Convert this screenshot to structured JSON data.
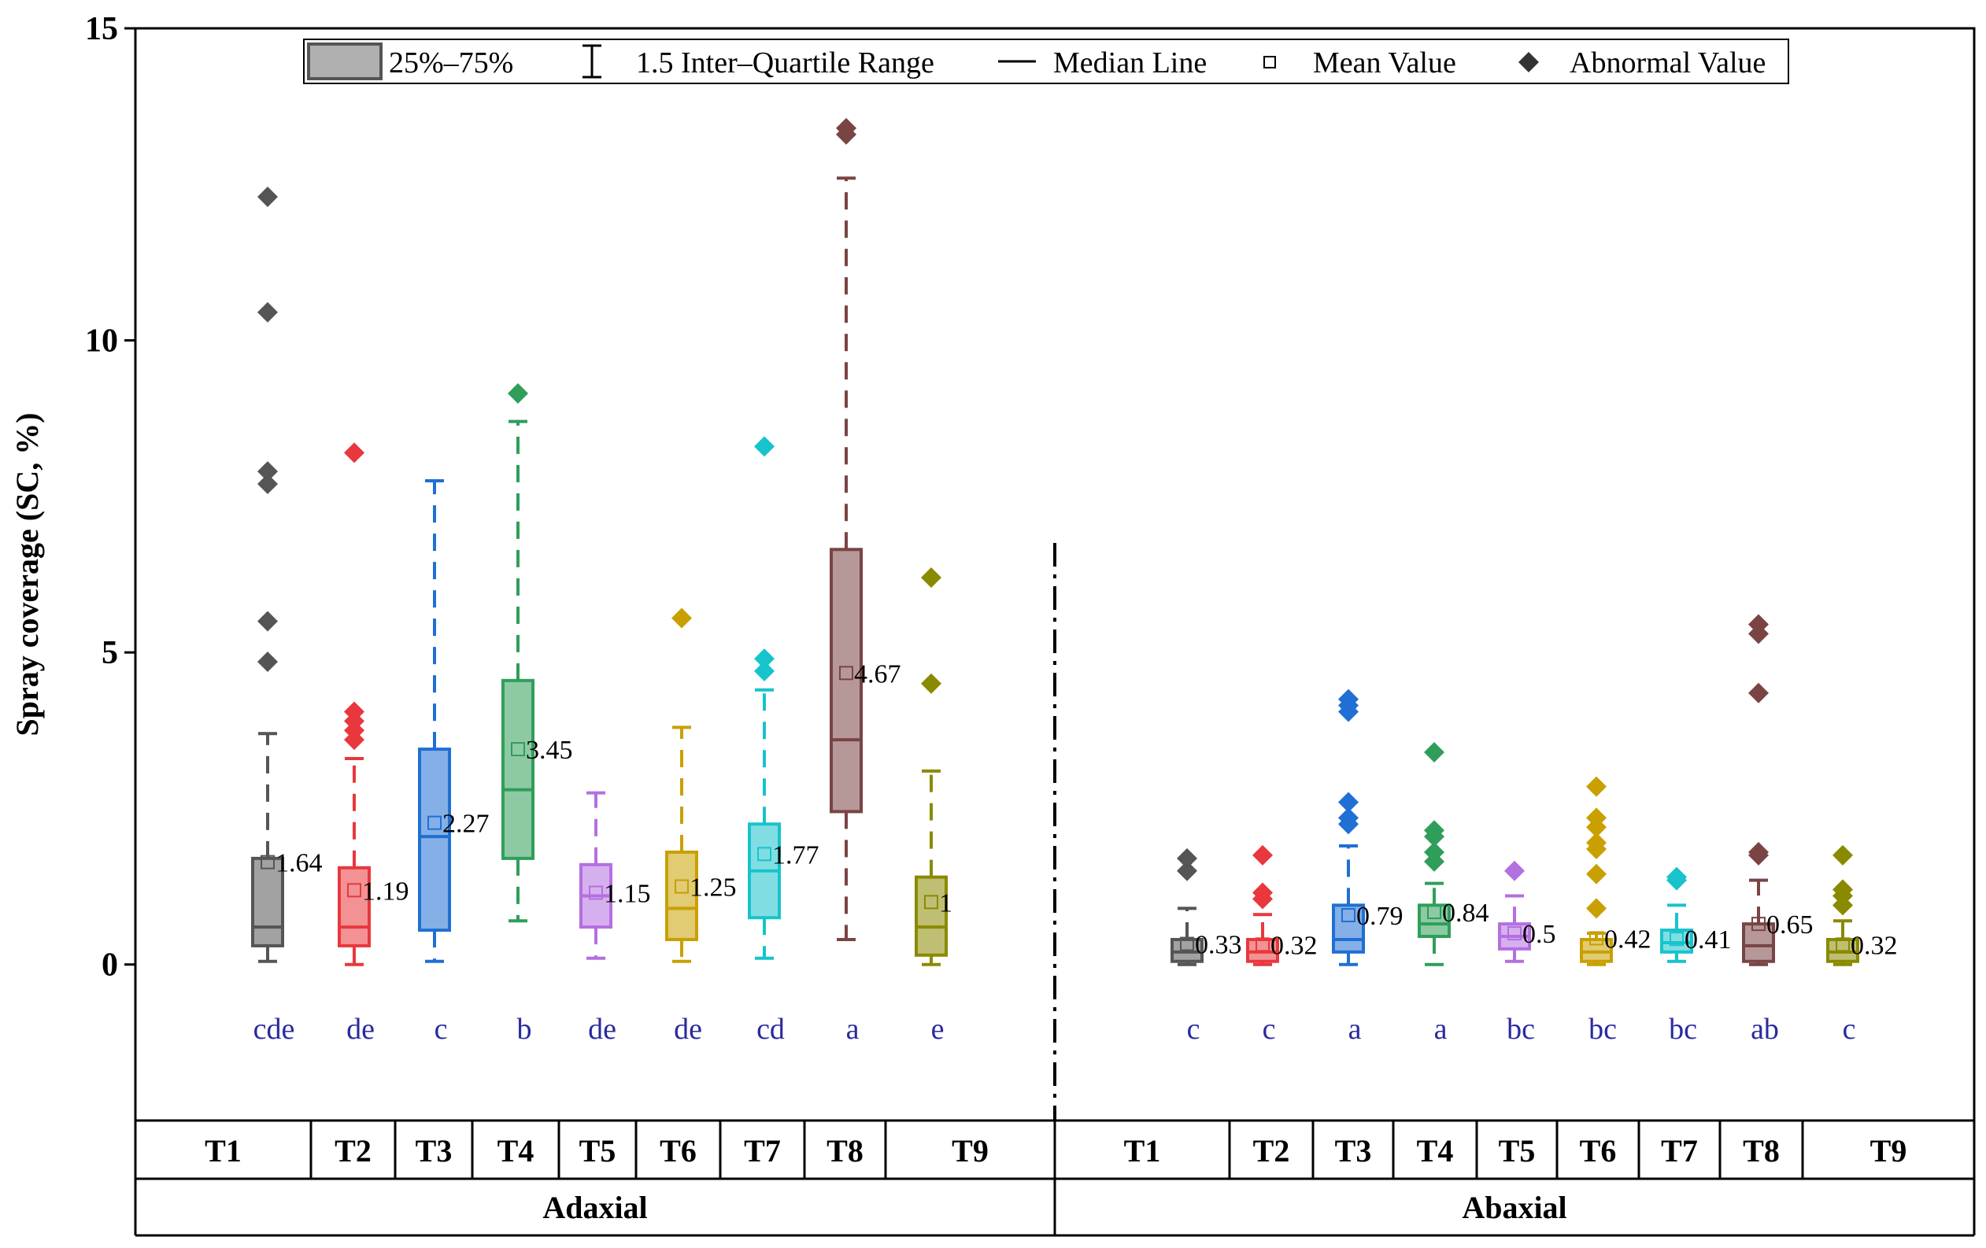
{
  "chart_data": {
    "type": "box",
    "ylabel": "Spray coverage (SC, %)",
    "ylim": [
      -2.5,
      15
    ],
    "yticks": [
      0,
      5,
      10,
      15
    ],
    "legend": {
      "items": [
        {
          "key": "box",
          "label": "25%–75%"
        },
        {
          "key": "iqr",
          "label": "1.5 Inter–Quartile Range"
        },
        {
          "key": "median",
          "label": "Median Line"
        },
        {
          "key": "mean",
          "label": "Mean Value"
        },
        {
          "key": "outlier",
          "label": "Abnormal Value"
        }
      ]
    },
    "colors": {
      "T1": "#555555",
      "T2": "#e8383d",
      "T3": "#1f6fd4",
      "T4": "#2f9e5a",
      "T5": "#b46fe0",
      "T6": "#c9a000",
      "T7": "#17c3cc",
      "T8": "#7a4444",
      "T9": "#8a8a00"
    },
    "groups": [
      {
        "name": "Adaxial",
        "series": [
          {
            "name": "T1",
            "q1": 0.3,
            "median": 0.6,
            "q3": 1.7,
            "whisker_low": 0.05,
            "whisker_high": 3.7,
            "mean": 1.64,
            "mean_label": "1.64",
            "outliers": [
              4.85,
              5.5,
              7.7,
              7.9,
              10.45,
              12.3
            ],
            "sig": "cde"
          },
          {
            "name": "T2",
            "q1": 0.3,
            "median": 0.6,
            "q3": 1.55,
            "whisker_low": 0.0,
            "whisker_high": 3.3,
            "mean": 1.19,
            "mean_label": "1.19",
            "outliers": [
              3.6,
              3.75,
              3.9,
              4.05,
              8.2
            ],
            "sig": "de"
          },
          {
            "name": "T3",
            "q1": 0.55,
            "median": 2.05,
            "q3": 3.45,
            "whisker_low": 0.05,
            "whisker_high": 7.75,
            "mean": 2.27,
            "mean_label": "2.27",
            "outliers": [],
            "sig": "c"
          },
          {
            "name": "T4",
            "q1": 1.7,
            "median": 2.8,
            "q3": 4.55,
            "whisker_low": 0.7,
            "whisker_high": 8.7,
            "mean": 3.45,
            "mean_label": "3.45",
            "outliers": [
              9.15
            ],
            "sig": "b"
          },
          {
            "name": "T5",
            "q1": 0.6,
            "median": 1.1,
            "q3": 1.6,
            "whisker_low": 0.1,
            "whisker_high": 2.75,
            "mean": 1.15,
            "mean_label": "1.15",
            "outliers": [],
            "sig": "de"
          },
          {
            "name": "T6",
            "q1": 0.4,
            "median": 0.9,
            "q3": 1.8,
            "whisker_low": 0.05,
            "whisker_high": 3.8,
            "mean": 1.25,
            "mean_label": "1.25",
            "outliers": [
              5.55
            ],
            "sig": "de"
          },
          {
            "name": "T7",
            "q1": 0.75,
            "median": 1.5,
            "q3": 2.25,
            "whisker_low": 0.1,
            "whisker_high": 4.4,
            "mean": 1.77,
            "mean_label": "1.77",
            "outliers": [
              4.7,
              4.9,
              8.3
            ],
            "sig": "cd"
          },
          {
            "name": "T8",
            "q1": 2.45,
            "median": 3.6,
            "q3": 6.65,
            "whisker_low": 0.4,
            "whisker_high": 12.6,
            "mean": 4.67,
            "mean_label": "4.67",
            "outliers": [
              13.3,
              13.4
            ],
            "sig": "a"
          },
          {
            "name": "T9",
            "q1": 0.15,
            "median": 0.6,
            "q3": 1.4,
            "whisker_low": 0.0,
            "whisker_high": 3.1,
            "mean": 1.0,
            "mean_label": "1",
            "outliers": [
              4.5,
              6.2
            ],
            "sig": "e"
          }
        ]
      },
      {
        "name": "Abaxial",
        "series": [
          {
            "name": "T1",
            "q1": 0.05,
            "median": 0.2,
            "q3": 0.4,
            "whisker_low": 0.0,
            "whisker_high": 0.9,
            "mean": 0.33,
            "mean_label": "0.33",
            "outliers": [
              1.5,
              1.7
            ],
            "sig": "c"
          },
          {
            "name": "T2",
            "q1": 0.05,
            "median": 0.2,
            "q3": 0.4,
            "whisker_low": 0.0,
            "whisker_high": 0.8,
            "mean": 0.32,
            "mean_label": "0.32",
            "outliers": [
              1.05,
              1.15,
              1.75
            ],
            "sig": "c"
          },
          {
            "name": "T3",
            "q1": 0.2,
            "median": 0.4,
            "q3": 0.95,
            "whisker_low": 0.0,
            "whisker_high": 1.9,
            "mean": 0.79,
            "mean_label": "0.79",
            "outliers": [
              2.25,
              2.35,
              2.6,
              4.05,
              4.15,
              4.25
            ],
            "sig": "a"
          },
          {
            "name": "T4",
            "q1": 0.45,
            "median": 0.65,
            "q3": 0.95,
            "whisker_low": 0.0,
            "whisker_high": 1.3,
            "mean": 0.84,
            "mean_label": "0.84",
            "outliers": [
              1.65,
              1.8,
              2.05,
              2.15,
              3.4
            ],
            "sig": "a"
          },
          {
            "name": "T5",
            "q1": 0.25,
            "median": 0.45,
            "q3": 0.65,
            "whisker_low": 0.05,
            "whisker_high": 1.1,
            "mean": 0.5,
            "mean_label": "0.5",
            "outliers": [
              1.5
            ],
            "sig": "bc"
          },
          {
            "name": "T6",
            "q1": 0.05,
            "median": 0.2,
            "q3": 0.4,
            "whisker_low": 0.0,
            "whisker_high": 0.5,
            "mean": 0.42,
            "mean_label": "0.42",
            "outliers": [
              0.9,
              1.45,
              1.85,
              1.95,
              2.2,
              2.35,
              2.85
            ],
            "sig": "bc"
          },
          {
            "name": "T7",
            "q1": 0.2,
            "median": 0.35,
            "q3": 0.55,
            "whisker_low": 0.05,
            "whisker_high": 0.95,
            "mean": 0.41,
            "mean_label": "0.41",
            "outliers": [
              1.35,
              1.4
            ],
            "sig": "bc"
          },
          {
            "name": "T8",
            "q1": 0.05,
            "median": 0.3,
            "q3": 0.65,
            "whisker_low": 0.0,
            "whisker_high": 1.35,
            "mean": 0.65,
            "mean_label": "0.65",
            "outliers": [
              1.75,
              1.8,
              4.35,
              5.3,
              5.45
            ],
            "sig": "ab"
          },
          {
            "name": "T9",
            "q1": 0.05,
            "median": 0.2,
            "q3": 0.4,
            "whisker_low": 0.0,
            "whisker_high": 0.7,
            "mean": 0.32,
            "mean_label": "0.32",
            "outliers": [
              0.95,
              1.1,
              1.2,
              1.75
            ],
            "sig": "c"
          }
        ]
      }
    ]
  }
}
